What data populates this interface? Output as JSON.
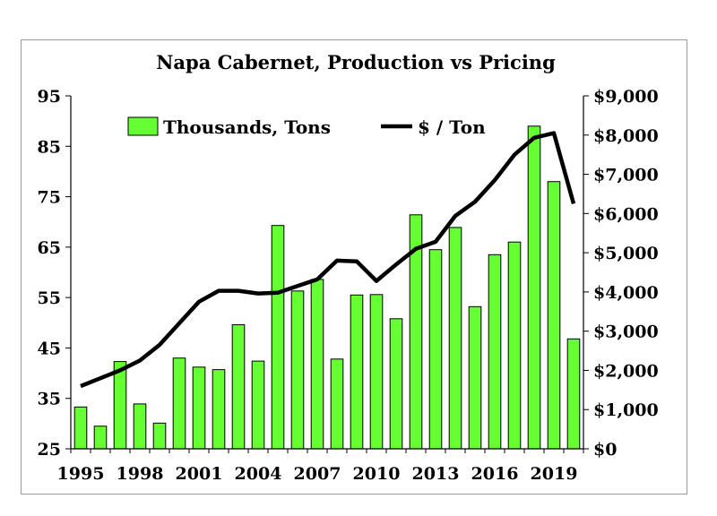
{
  "chart_data": {
    "type": "bar",
    "title": "Napa Cabernet, Production vs Pricing",
    "x": [
      1995,
      1996,
      1997,
      1998,
      1999,
      2000,
      2001,
      2002,
      2003,
      2004,
      2005,
      2006,
      2007,
      2008,
      2009,
      2010,
      2011,
      2012,
      2013,
      2014,
      2015,
      2016,
      2017,
      2018,
      2019,
      2020
    ],
    "x_tick_labels": [
      "1995",
      "1998",
      "2001",
      "2004",
      "2007",
      "2010",
      "2013",
      "2016",
      "2019"
    ],
    "y_left": {
      "range": [
        25,
        95
      ],
      "ticks": [
        "25",
        "35",
        "45",
        "55",
        "65",
        "75",
        "85",
        "95"
      ]
    },
    "y_right": {
      "range": [
        0,
        9000
      ],
      "ticks": [
        "$0",
        "$1,000",
        "$2,000",
        "$3,000",
        "$4,000",
        "$5,000",
        "$6,000",
        "$7,000",
        "$8,000",
        "$9,000"
      ]
    },
    "series": [
      {
        "name": "Thousands, Tons",
        "type": "bar",
        "axis": "left",
        "color": "#66ff33",
        "values": [
          33.3,
          29.5,
          42.3,
          33.9,
          30.1,
          43.0,
          41.2,
          40.7,
          49.6,
          42.4,
          69.3,
          56.3,
          58.6,
          42.8,
          55.5,
          55.6,
          50.8,
          71.4,
          64.5,
          68.9,
          53.2,
          63.5,
          66.0,
          89.0,
          78.0,
          46.8
        ]
      },
      {
        "name": "$ / Ton",
        "type": "line",
        "axis": "right",
        "color": "#000000",
        "values": [
          1600,
          1800,
          2000,
          2250,
          2650,
          3200,
          3750,
          4030,
          4030,
          3960,
          3980,
          4150,
          4320,
          4800,
          4780,
          4280,
          4700,
          5100,
          5280,
          5940,
          6300,
          6850,
          7500,
          7930,
          8050,
          6250
        ]
      }
    ],
    "legend": "top-inside",
    "grid": false
  }
}
